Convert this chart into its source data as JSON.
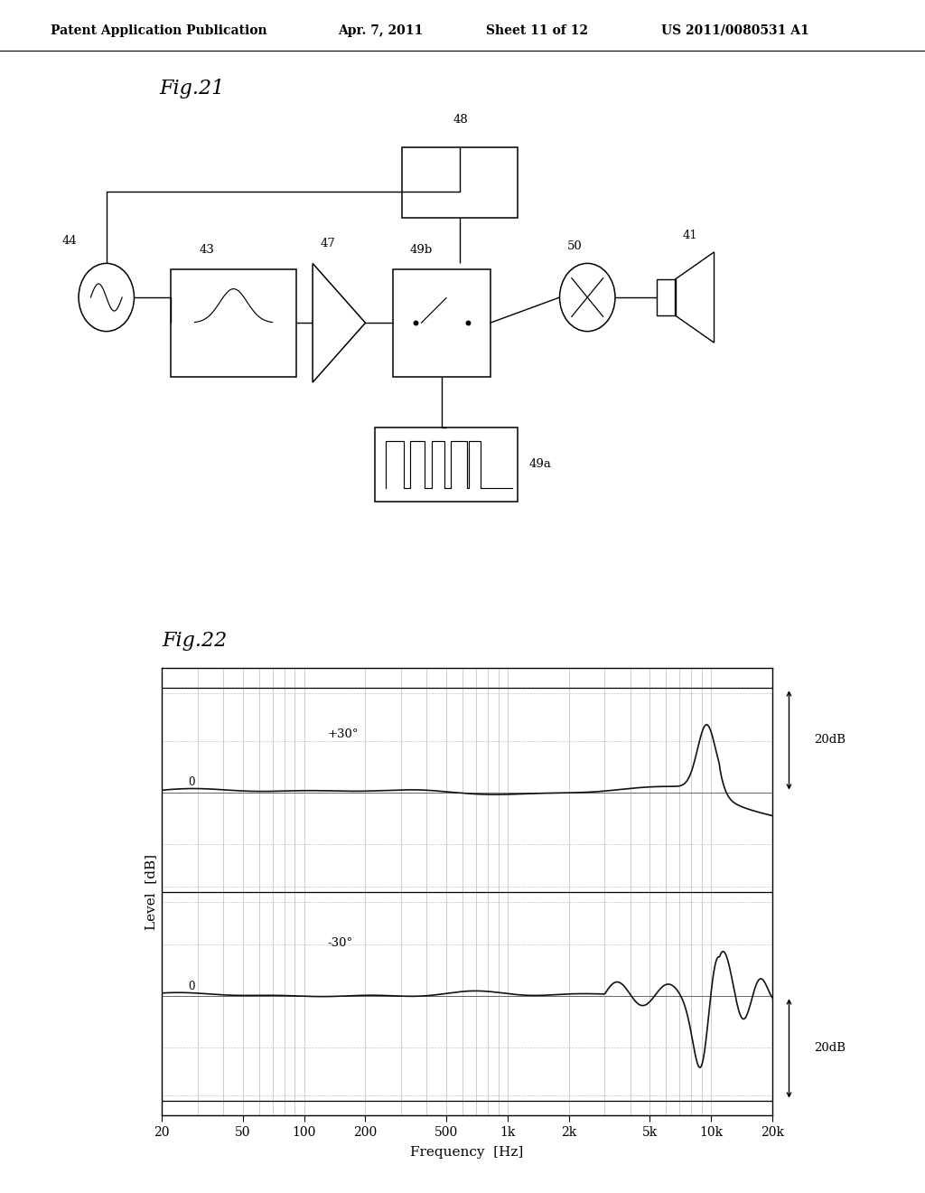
{
  "bg_color": "#ffffff",
  "header_text": "Patent Application Publication",
  "header_date": "Apr. 7, 2011",
  "header_sheet": "Sheet 11 of 12",
  "header_patent": "US 2011/0080531 A1",
  "fig21_title": "Fig.21",
  "fig22_title": "Fig.22",
  "fig22_xlabel": "Frequency  [Hz]",
  "fig22_ylabel": "Level  [dB]",
  "fig22_xtick_labels": [
    "20",
    "50",
    "100",
    "200",
    "500",
    "1k",
    "2k",
    "5k",
    "10k",
    "20k"
  ],
  "fig22_xtick_vals": [
    20,
    50,
    100,
    200,
    500,
    1000,
    2000,
    5000,
    10000,
    20000
  ],
  "label_top": "+30°",
  "label_bot": "-30°",
  "right_label": "20dB",
  "grid_color": "#bbbbbb",
  "line_color": "#111111"
}
